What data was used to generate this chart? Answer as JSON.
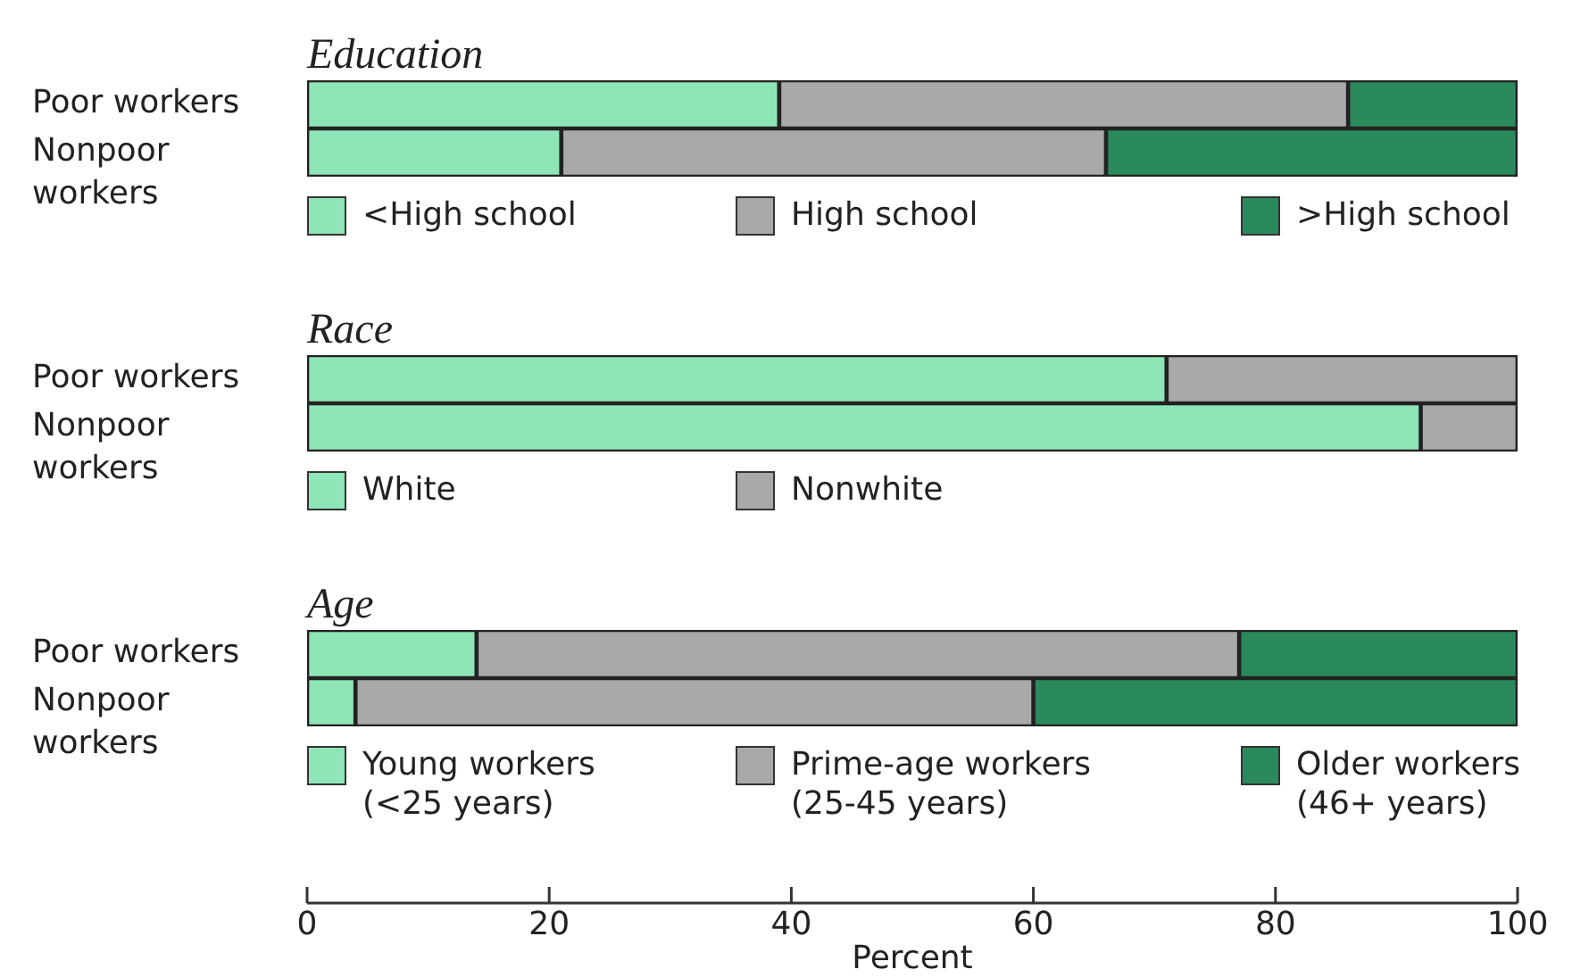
{
  "chart_data": [
    {
      "type": "bar",
      "orientation": "horizontal",
      "stacked": true,
      "title": "Education",
      "categories": [
        "Poor workers",
        "Nonpoor workers"
      ],
      "series": [
        {
          "name": "<High school",
          "color": "#8ee6b6",
          "values": [
            39,
            21
          ]
        },
        {
          "name": "High school",
          "color": "#a9a9a9",
          "values": [
            47,
            45
          ]
        },
        {
          "name": ">High school",
          "color": "#2b8a5c",
          "values": [
            14,
            34
          ]
        }
      ],
      "xlim": [
        0,
        100
      ],
      "tick_labels": "y",
      "legend": "bottom"
    },
    {
      "type": "bar",
      "orientation": "horizontal",
      "stacked": true,
      "title": "Race",
      "categories": [
        "Poor workers",
        "Nonpoor workers"
      ],
      "series": [
        {
          "name": "White",
          "color": "#8ee6b6",
          "values": [
            71,
            92
          ]
        },
        {
          "name": "Nonwhite",
          "color": "#a9a9a9",
          "values": [
            29,
            8
          ]
        }
      ],
      "xlim": [
        0,
        100
      ],
      "tick_labels": "y",
      "legend": "bottom"
    },
    {
      "type": "bar",
      "orientation": "horizontal",
      "stacked": true,
      "title": "Age",
      "categories": [
        "Poor workers",
        "Nonpoor workers"
      ],
      "series": [
        {
          "name": "Young workers (<25 years)",
          "color": "#8ee6b6",
          "values": [
            14,
            4
          ]
        },
        {
          "name": "Prime-age workers (25-45 years)",
          "color": "#a9a9a9",
          "values": [
            63,
            56
          ]
        },
        {
          "name": "Older workers (46+ years)",
          "color": "#2b8a5c",
          "values": [
            23,
            40
          ]
        }
      ],
      "xlim": [
        0,
        100
      ],
      "xticks": [
        0,
        20,
        40,
        60,
        80,
        100
      ],
      "xlabel": "Percent",
      "legend": "bottom"
    }
  ]
}
